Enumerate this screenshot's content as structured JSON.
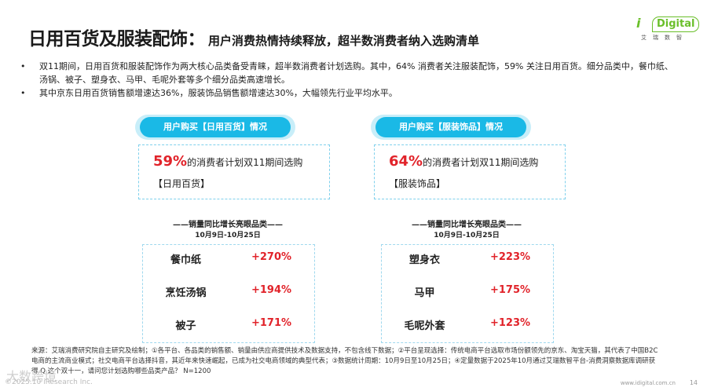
{
  "header": {
    "title": "日用百货及服装配饰：",
    "subtitle": "用户消费热情持续释放，超半数消费者纳入选购清单"
  },
  "logo": {
    "mark": "i",
    "box_text": "Digital",
    "cn": "艾瑞数智"
  },
  "bullets": [
    {
      "symbol": "•",
      "text": "双11期间，日用百货和服装配饰作为两大核心品类备受青睐，超半数消费者计划选购。其中，64% 消费者关注服装配饰，59% 关注日用百货。细分品类中，餐巾纸、汤锅、被子、塑身衣、马甲、毛呢外套等多个细分品类高速增长。"
    },
    {
      "symbol": "•",
      "text": "其中京东日用百货销售额增速达36%，服装饰品销售额增速达30%，大幅领先行业平均水平。"
    }
  ],
  "panels": [
    {
      "pill": "用户购买【日用百货】情况",
      "pct": "59%",
      "stat_text": "的消费者计划双11期间选购",
      "category": "【日用百货】",
      "section_title": "——销量同比增长亮眼品类——",
      "date_range": "10月9日-10月25日",
      "rows": [
        {
          "name": "餐巾纸",
          "value": "+270%"
        },
        {
          "name": "烹饪汤锅",
          "value": "+194%"
        },
        {
          "name": "被子",
          "value": "+171%"
        }
      ]
    },
    {
      "pill": "用户购买【服装饰品】情况",
      "pct": "64%",
      "stat_text": "的消费者计划双11期间选购",
      "category": "【服装饰品】",
      "section_title": "——销量同比增长亮眼品类——",
      "date_range": "10月9日-10月25日",
      "rows": [
        {
          "name": "塑身衣",
          "value": "+223%"
        },
        {
          "name": "马甲",
          "value": "+175%"
        },
        {
          "name": "毛呢外套",
          "value": "+123%"
        }
      ]
    }
  ],
  "source": "来源：艾瑞消费研究院自主研究及绘制；①各平台、各品类的销售额、销量由供应商提供技术及数据支持，不包含线下数据；②平台呈现选择：传统电商平台选取市场份额领先的京东、淘宝天猫，其代表了中国B2C电商的主流商业模式；社交电商平台选择抖音，其近年来快速崛起，已成为社交电商领域的典型代表；③数据统计周期：10月9日至10月25日；④定量数据于2025年10月通过艾瑞数智平台-消费洞察数据库调研获得 Q.这个双十一，请问您计划选购哪些品类产品？ N=1200",
  "footer": {
    "left": "©2025.10 iResearch Inc.",
    "right": "www.idigital.com.cn",
    "page": "14",
    "watermark": "大数跨境"
  }
}
